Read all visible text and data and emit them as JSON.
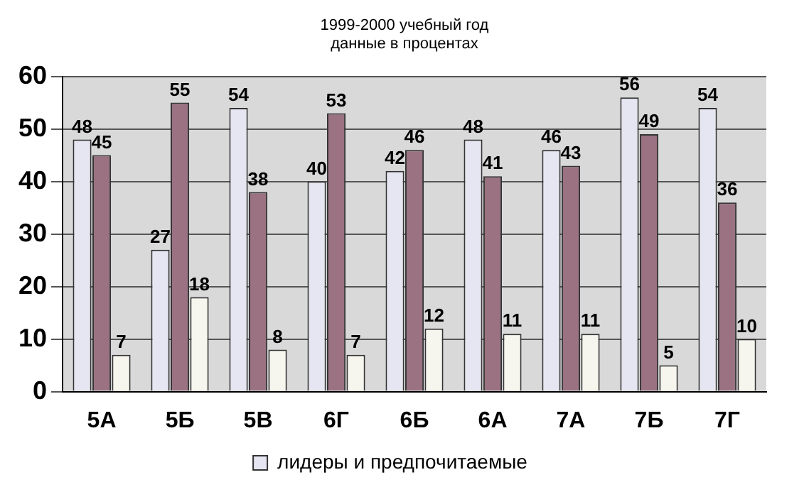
{
  "chart_data": {
    "type": "bar",
    "title": "1999-2000  учебный год",
    "subtitle": "данные в процентах",
    "categories": [
      "5А",
      "5Б",
      "5В",
      "6Г",
      "6Б",
      "6А",
      "7А",
      "7Б",
      "7Г"
    ],
    "series": [
      {
        "name": "лидеры и предпочитаемые",
        "color": "#e6e6f2",
        "values": [
          48,
          27,
          54,
          40,
          42,
          48,
          46,
          56,
          54
        ]
      },
      {
        "color": "#9a7282",
        "values": [
          45,
          55,
          38,
          53,
          46,
          41,
          43,
          49,
          36
        ]
      },
      {
        "color": "#f6f6ee",
        "values": [
          7,
          18,
          8,
          7,
          12,
          11,
          11,
          5,
          10
        ]
      }
    ],
    "ylim": [
      0,
      60
    ],
    "yticks": [
      0,
      10,
      20,
      30,
      40,
      50,
      60
    ],
    "grid": "y",
    "legend": "bottom",
    "data_labels": true
  }
}
